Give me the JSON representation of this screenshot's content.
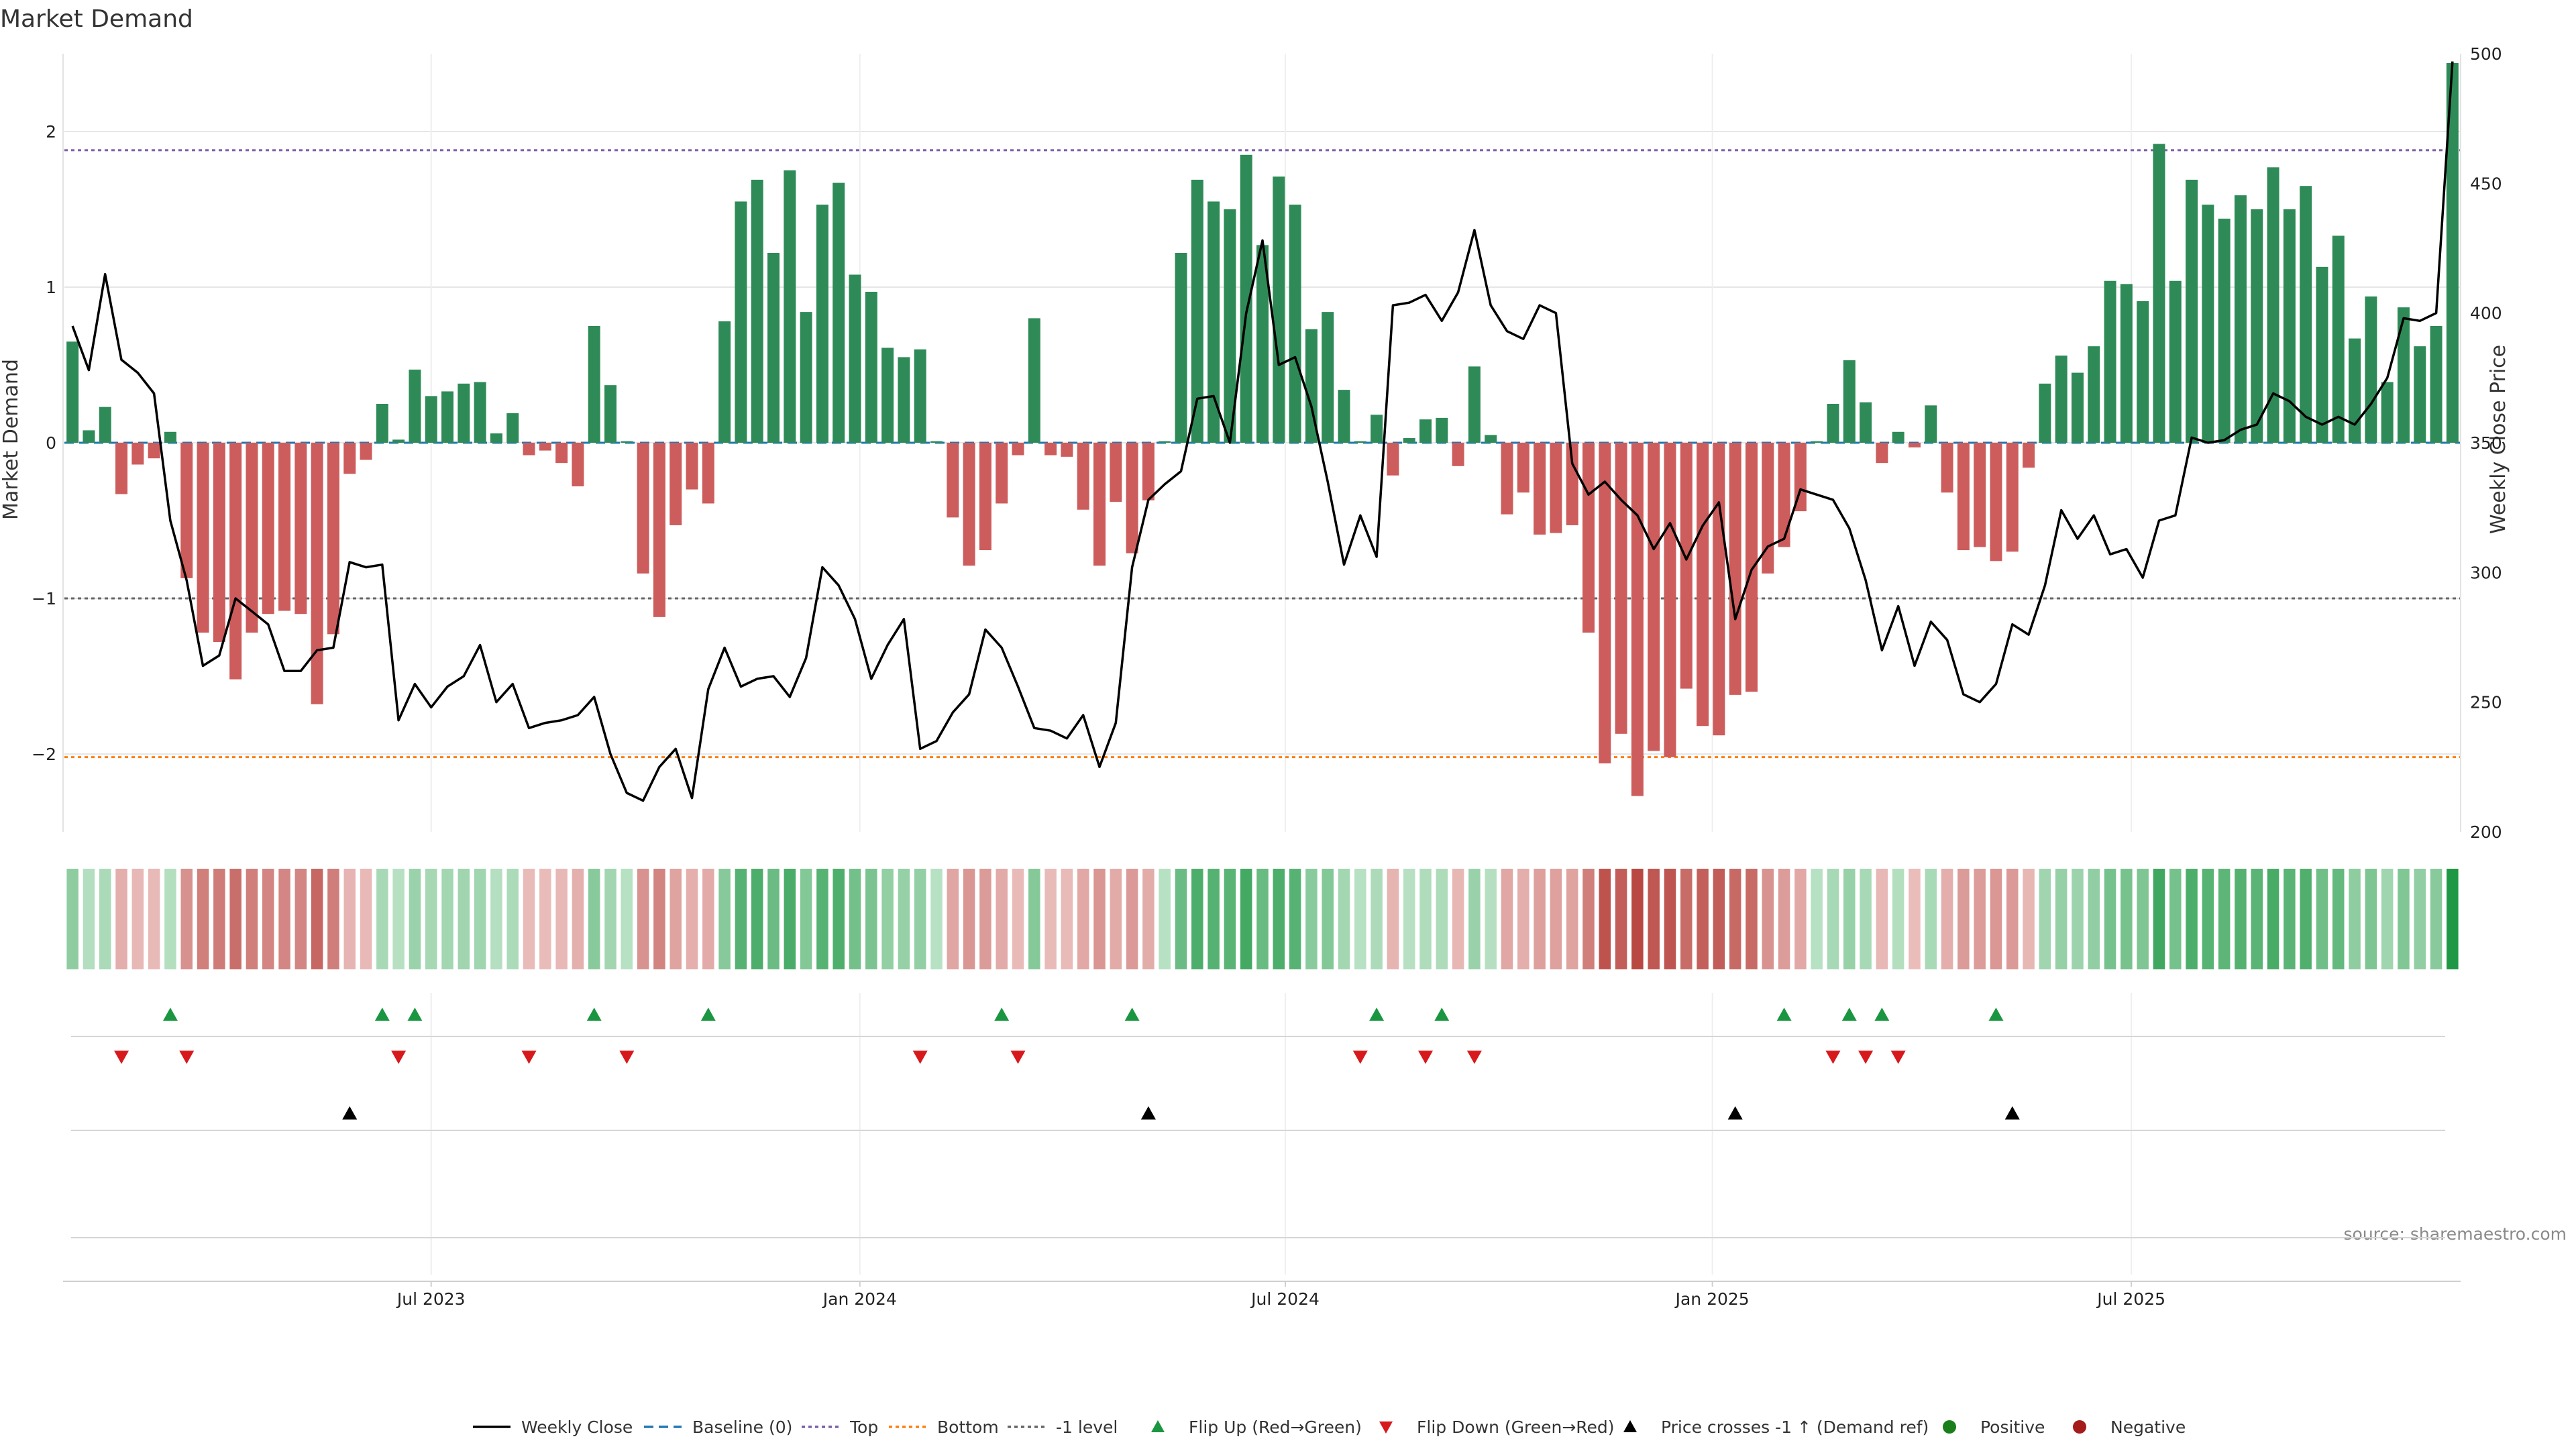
{
  "chart_data": {
    "type": "bar",
    "title": "Market Demand",
    "ylabel": "Market Demand",
    "ylabel_right": "Weekly Close Price",
    "source": "source: sharemaestro.com",
    "ylim": [
      -2.5,
      2.5
    ],
    "ylim_right": [
      200,
      500
    ],
    "y_ticks": [
      2,
      1,
      0,
      -1,
      -2
    ],
    "y_tick_labels": [
      "2",
      "1",
      "0",
      "−1",
      "−2"
    ],
    "y2_ticks": [
      500,
      450,
      400,
      350,
      300,
      250,
      200
    ],
    "x_ticks": [
      22.5,
      48.8,
      74.9,
      101.1,
      126.8
    ],
    "x_tick_labels": [
      "Jul 2023",
      "Jan 2024",
      "Jul 2024",
      "Jan 2025",
      "Jul 2025"
    ],
    "reference_lines": [
      {
        "name": "Baseline (0)",
        "value": 0,
        "color": "#1f77b4",
        "dash": "dashed"
      },
      {
        "name": "Top",
        "value": 1.88,
        "color": "#7b5ea7",
        "dash": "dotted"
      },
      {
        "name": "Bottom",
        "value": -2.02,
        "color": "#ff7f0e",
        "dash": "dotted"
      },
      {
        "name": "-1 level",
        "value": -1,
        "color": "#666666",
        "dash": "dotted"
      }
    ],
    "series": [
      {
        "name": "Market Demand",
        "type": "bar",
        "values": [
          0.65,
          0.08,
          0.23,
          -0.33,
          -0.14,
          -0.1,
          0.07,
          -0.87,
          -1.22,
          -1.28,
          -1.52,
          -1.22,
          -1.1,
          -1.08,
          -1.1,
          -1.68,
          -1.23,
          -0.2,
          -0.11,
          0.25,
          0.02,
          0.47,
          0.3,
          0.33,
          0.38,
          0.39,
          0.06,
          0.19,
          -0.08,
          -0.05,
          -0.13,
          -0.28,
          0.75,
          0.37,
          0.01,
          -0.84,
          -1.12,
          -0.53,
          -0.3,
          -0.39,
          0.78,
          1.55,
          1.69,
          1.22,
          1.75,
          0.84,
          1.53,
          1.67,
          1.08,
          0.97,
          0.61,
          0.55,
          0.6,
          0.01,
          -0.48,
          -0.79,
          -0.69,
          -0.39,
          -0.08,
          0.8,
          -0.08,
          -0.09,
          -0.43,
          -0.79,
          -0.38,
          -0.71,
          -0.37,
          0.01,
          1.22,
          1.69,
          1.55,
          1.5,
          1.85,
          1.27,
          1.71,
          1.53,
          0.73,
          0.84,
          0.34,
          0.01,
          0.18,
          -0.21,
          0.03,
          0.15,
          0.16,
          -0.15,
          0.49,
          0.05,
          -0.46,
          -0.32,
          -0.59,
          -0.58,
          -0.53,
          -1.22,
          -2.06,
          -1.87,
          -2.27,
          -1.98,
          -2.02,
          -1.58,
          -1.82,
          -1.88,
          -1.62,
          -1.6,
          -0.84,
          -0.67,
          -0.44,
          0.01,
          0.25,
          0.53,
          0.26,
          -0.13,
          0.07,
          -0.03,
          0.24,
          -0.32,
          -0.69,
          -0.67,
          -0.76,
          -0.7,
          -0.16,
          0.38,
          0.56,
          0.45,
          0.62,
          1.04,
          1.02,
          0.91,
          1.92,
          1.04,
          1.69,
          1.53,
          1.44,
          1.59,
          1.5,
          1.77,
          1.5,
          1.65,
          1.13,
          1.33,
          0.67,
          0.94,
          0.39,
          0.87,
          0.62,
          0.75,
          2.44
        ]
      },
      {
        "name": "Weekly Close",
        "type": "line",
        "axis": "right",
        "values": [
          395,
          378,
          415,
          382,
          377,
          369,
          320,
          297,
          264,
          268,
          290,
          285,
          280,
          262,
          262,
          270,
          271,
          304,
          302,
          303,
          243,
          257,
          248,
          256,
          260,
          272,
          250,
          257,
          240,
          242,
          243,
          245,
          252,
          230,
          215,
          212,
          225,
          232,
          213,
          255,
          271,
          256,
          259,
          260,
          252,
          267,
          302,
          295,
          282,
          259,
          272,
          282,
          232,
          235,
          246,
          253,
          278,
          271,
          256,
          240,
          239,
          236,
          245,
          225,
          242,
          302,
          328,
          334,
          339,
          367,
          368,
          350,
          400,
          428,
          380,
          383,
          364,
          335,
          303,
          322,
          306,
          403,
          404,
          407,
          397,
          408,
          432,
          403,
          393,
          390,
          403,
          400,
          342,
          330,
          335,
          328,
          322,
          309,
          319,
          305,
          318,
          327,
          282,
          301,
          310,
          313,
          332,
          330,
          328,
          317,
          297,
          270,
          287,
          264,
          281,
          274,
          253,
          250,
          257,
          280,
          276,
          295,
          324,
          313,
          322,
          307,
          309,
          298,
          320,
          322,
          352,
          350,
          351,
          355,
          357,
          369,
          366,
          360,
          357,
          360,
          357,
          365,
          375,
          398,
          397,
          400,
          497
        ]
      }
    ],
    "markers": {
      "flip_up": [
        6,
        19,
        21,
        32,
        39,
        57,
        65,
        80,
        84,
        105,
        109,
        111,
        118
      ],
      "flip_down": [
        3,
        7,
        20,
        28,
        34,
        52,
        58,
        79,
        83,
        86,
        108,
        110,
        112
      ],
      "price_crosses": [
        17,
        66,
        102,
        119
      ]
    },
    "legend": [
      {
        "label": "Weekly Close",
        "kind": "line",
        "color": "#000000"
      },
      {
        "label": "Baseline (0)",
        "kind": "dashed",
        "color": "#1f77b4"
      },
      {
        "label": "Top",
        "kind": "dotted",
        "color": "#7b5ea7"
      },
      {
        "label": "Bottom",
        "kind": "dotted",
        "color": "#ff7f0e"
      },
      {
        "label": "-1 level",
        "kind": "dotted",
        "color": "#666666"
      },
      {
        "label": "Flip Up (Red→Green)",
        "kind": "tri-up",
        "color": "#1a9641"
      },
      {
        "label": "Flip Down (Green→Red)",
        "kind": "tri-down",
        "color": "#d7191c"
      },
      {
        "label": "Price crosses -1 ↑ (Demand ref)",
        "kind": "tri-up",
        "color": "#000000"
      },
      {
        "label": "Positive",
        "kind": "dot",
        "color": "#1a7f1a"
      },
      {
        "label": "Negative",
        "kind": "dot",
        "color": "#a51c1c"
      }
    ],
    "legend_position": "bottom-center",
    "colors": {
      "positive_bar": "#2e8b57",
      "negative_bar": "#cd5c5c",
      "price_line": "#000000",
      "grid": "#e6e6e6"
    }
  }
}
